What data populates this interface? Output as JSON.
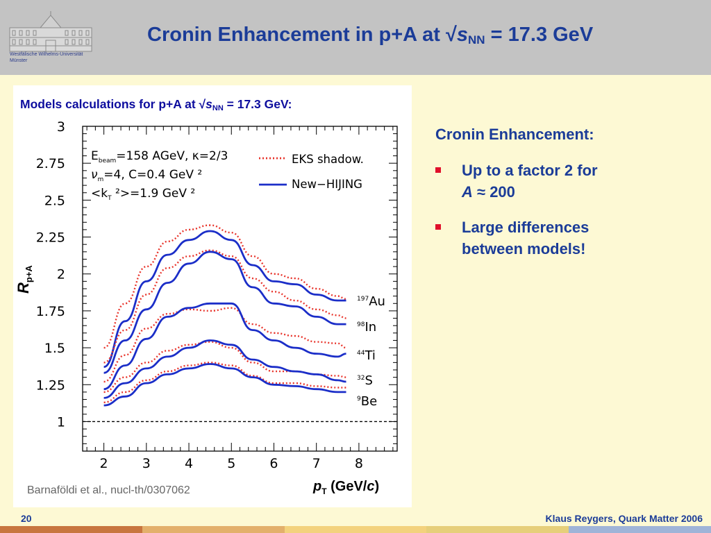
{
  "header": {
    "university_lines": [
      "Westfälische Wilhelms-Universität",
      "Münster"
    ],
    "title_pre": "Cronin Enhancement in p+A at √",
    "title_s": "s",
    "title_sub": "NN",
    "title_post": " = 17.3 GeV"
  },
  "panel": {
    "title_pre": "Models calculations for p+A at √",
    "title_s": "s",
    "title_sub": "NN",
    "title_post": " = 17.3 GeV:",
    "citation": "Barnaföldi et al., nucl-th/0307062"
  },
  "right": {
    "heading": "Cronin Enhancement:",
    "bullet1_line1": "Up to a factor 2 for",
    "bullet1_italic": "A",
    "bullet1_rest": " ≈ 200",
    "bullet2": "Large differences between models!"
  },
  "footer": {
    "page_number": "20",
    "credit": "Klaus Reygers, Quark Matter 2006",
    "band_colors": [
      "#c8763f",
      "#e3b06b",
      "#f3d27d",
      "#e6cf7a",
      "#9fb4d8"
    ]
  },
  "chart_data": {
    "type": "line",
    "xlabel_main": "p",
    "xlabel_sub": "T",
    "xlabel_unit_pre": " (GeV/",
    "xlabel_unit_c": "c",
    "xlabel_unit_post": ")",
    "ylabel_main": "R",
    "ylabel_sub": "p+A",
    "xlim": [
      1.5,
      8.9
    ],
    "ylim": [
      0.8,
      3.0
    ],
    "x_ticks": [
      2,
      3,
      4,
      5,
      6,
      7,
      8
    ],
    "x_tick_labels": [
      "2",
      "3",
      "4",
      "5",
      "6",
      "7",
      "8"
    ],
    "y_ticks": [
      1,
      1.25,
      1.5,
      1.75,
      2,
      2.25,
      2.5,
      2.75,
      3
    ],
    "y_tick_labels": [
      "1",
      "1.25",
      "1.5",
      "1.75",
      "2",
      "2.25",
      "2.5",
      "2.75",
      "3"
    ],
    "reference_line": 1,
    "params": {
      "line1_a": "E",
      "line1_sub": "beam",
      "line1_b": "=158 AGeV, κ=2/3",
      "line2_a": "ν",
      "line2_sub": "m",
      "line2_b": "=4,  C=0.4 GeV ²",
      "line3_a": "<k",
      "line3_sub": "T",
      "line3_b": " ²>=1.9 GeV ²"
    },
    "legend": [
      {
        "label": "EKS shadow.",
        "color": "#e8342b",
        "style": "dotted"
      },
      {
        "label": "New−HIJING",
        "color": "#1b2ec8",
        "style": "solid"
      }
    ],
    "nuclei": [
      {
        "mass": "197",
        "symbol": "Au"
      },
      {
        "mass": "98",
        "symbol": "In"
      },
      {
        "mass": "44",
        "symbol": "Ti"
      },
      {
        "mass": "32",
        "symbol": "S"
      },
      {
        "mass": "9",
        "symbol": "Be"
      }
    ],
    "x": [
      2.0,
      2.5,
      3.0,
      3.5,
      4.0,
      4.5,
      5.0,
      5.5,
      6.0,
      6.5,
      7.0,
      7.5,
      7.7
    ],
    "series": [
      {
        "nucleus": "Au",
        "model": "EKS shadow.",
        "style": "dotted",
        "color": "#e8342b",
        "values": [
          1.5,
          1.8,
          2.05,
          2.22,
          2.3,
          2.33,
          2.28,
          2.12,
          2.0,
          1.97,
          1.9,
          1.85,
          1.83
        ]
      },
      {
        "nucleus": "Au",
        "model": "New−HIJING",
        "style": "solid",
        "color": "#1b2ec8",
        "values": [
          1.37,
          1.68,
          1.95,
          2.13,
          2.23,
          2.29,
          2.23,
          2.06,
          1.95,
          1.93,
          1.86,
          1.82,
          1.82
        ]
      },
      {
        "nucleus": "In",
        "model": "EKS shadow.",
        "style": "dotted",
        "color": "#e8342b",
        "values": [
          1.4,
          1.62,
          1.86,
          2.04,
          2.12,
          2.16,
          2.12,
          1.97,
          1.88,
          1.82,
          1.76,
          1.72,
          1.7
        ]
      },
      {
        "nucleus": "In",
        "model": "New−HIJING",
        "style": "solid",
        "color": "#1b2ec8",
        "values": [
          1.33,
          1.55,
          1.76,
          1.94,
          2.07,
          2.15,
          2.1,
          1.91,
          1.8,
          1.78,
          1.71,
          1.66,
          1.66
        ]
      },
      {
        "nucleus": "Ti",
        "model": "EKS shadow.",
        "style": "dotted",
        "color": "#e8342b",
        "values": [
          1.27,
          1.45,
          1.63,
          1.73,
          1.76,
          1.75,
          1.77,
          1.66,
          1.6,
          1.58,
          1.54,
          1.53,
          1.5
        ]
      },
      {
        "nucleus": "Ti",
        "model": "New−HIJING",
        "style": "solid",
        "color": "#1b2ec8",
        "values": [
          1.22,
          1.38,
          1.56,
          1.71,
          1.77,
          1.8,
          1.8,
          1.62,
          1.55,
          1.5,
          1.46,
          1.44,
          1.46
        ]
      },
      {
        "nucleus": "S",
        "model": "EKS shadow.",
        "style": "dotted",
        "color": "#e8342b",
        "values": [
          1.2,
          1.3,
          1.4,
          1.48,
          1.52,
          1.54,
          1.5,
          1.4,
          1.34,
          1.34,
          1.32,
          1.31,
          1.3
        ]
      },
      {
        "nucleus": "S",
        "model": "New−HIJING",
        "style": "solid",
        "color": "#1b2ec8",
        "values": [
          1.16,
          1.26,
          1.36,
          1.44,
          1.5,
          1.55,
          1.52,
          1.42,
          1.37,
          1.34,
          1.32,
          1.28,
          1.27
        ]
      },
      {
        "nucleus": "Be",
        "model": "EKS shadow.",
        "style": "dotted",
        "color": "#e8342b",
        "values": [
          1.13,
          1.2,
          1.28,
          1.34,
          1.38,
          1.4,
          1.38,
          1.31,
          1.26,
          1.26,
          1.24,
          1.23,
          1.23
        ]
      },
      {
        "nucleus": "Be",
        "model": "New−HIJING",
        "style": "solid",
        "color": "#1b2ec8",
        "values": [
          1.11,
          1.17,
          1.26,
          1.32,
          1.36,
          1.39,
          1.36,
          1.3,
          1.25,
          1.24,
          1.22,
          1.2,
          1.2
        ]
      }
    ]
  }
}
